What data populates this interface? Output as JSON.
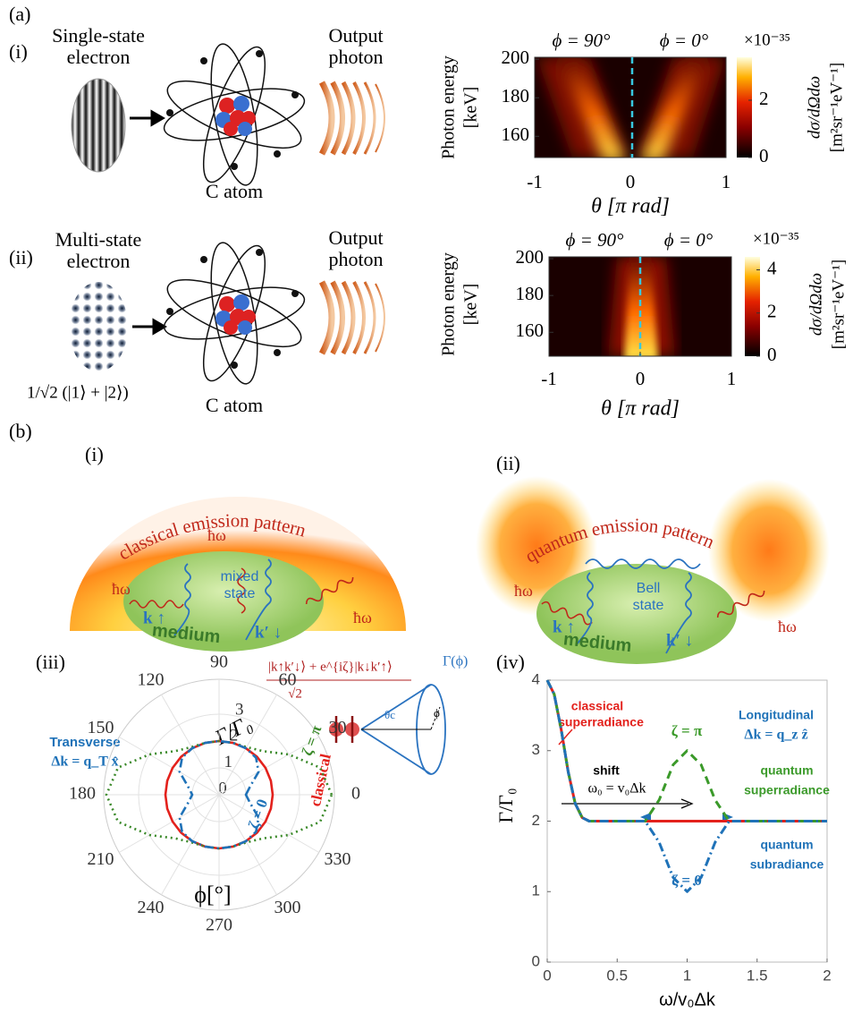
{
  "panel_a": {
    "label": "(a)",
    "rows": [
      {
        "label": "(i)",
        "electron": [
          "Single-state",
          "electron"
        ],
        "atom": "C atom",
        "photon": [
          "Output",
          "photon"
        ],
        "heatmap": {
          "top_labels": [
            "ϕ = 90°",
            "ϕ = 0°"
          ],
          "y_label": [
            "Photon energy",
            "[keV]"
          ],
          "x_label": "θ [π rad]",
          "xlim": [
            -1,
            1
          ],
          "xticks": [
            -1,
            0,
            1
          ],
          "ylim": [
            149,
            201
          ],
          "yticks": [
            160,
            180,
            200
          ],
          "colorbar_scale": "×10⁻³⁵",
          "clim": [
            0,
            3.5
          ],
          "cticks": [
            0,
            2
          ],
          "colorbar_label": [
            "dσ/dΩdω",
            "[m²sr⁻¹eV⁻¹]"
          ]
        }
      },
      {
        "label": "(ii)",
        "electron": [
          "Multi-state",
          "electron"
        ],
        "state": "1/√2 (|1⟩ + |2⟩)",
        "atom": "C atom",
        "photon": [
          "Output",
          "photon"
        ],
        "heatmap": {
          "top_labels": [
            "ϕ = 90°",
            "ϕ = 0°"
          ],
          "y_label": [
            "Photon energy",
            "[keV]"
          ],
          "x_label": "θ [π rad]",
          "xlim": [
            -1,
            1
          ],
          "xticks": [
            -1,
            0,
            1
          ],
          "ylim": [
            147,
            201
          ],
          "yticks": [
            160,
            180,
            200
          ],
          "colorbar_scale": "×10⁻³⁵",
          "clim": [
            0,
            4.6
          ],
          "cticks": [
            0,
            2,
            4
          ],
          "colorbar_label": [
            "dσ/dΩdω",
            "[m²sr⁻¹eV⁻¹]"
          ]
        }
      }
    ]
  },
  "panel_b": {
    "label": "(b)",
    "diagrams": [
      {
        "label": "(i)",
        "pattern": "classical emission pattern",
        "photons": [
          "ħω",
          "ħω",
          "ħω"
        ],
        "state": [
          "mixed",
          "state"
        ],
        "k_up": "k ↑",
        "k_down": "k′ ↓",
        "medium": "medium"
      },
      {
        "label": "(ii)",
        "pattern": "quantum emission pattern",
        "photons": [
          "ħω",
          "ħω"
        ],
        "state": [
          "Bell",
          "state"
        ],
        "k_up": "k ↑",
        "k_down": "k′ ↓",
        "medium": "medium"
      }
    ]
  },
  "polar": {
    "label": "(iii)",
    "angles": [
      0,
      15,
      30,
      45,
      60,
      75,
      90,
      105,
      120,
      135,
      150,
      165,
      180,
      195,
      210,
      225,
      240,
      255,
      270,
      285,
      300,
      315,
      330,
      345
    ],
    "angle_ticks": [
      0,
      30,
      60,
      90,
      120,
      150,
      180,
      210,
      240,
      270,
      300,
      330
    ],
    "rlim": [
      0,
      4.3
    ],
    "rticks": [
      0,
      1,
      2,
      3
    ],
    "r_label": "Γ/Γ₀",
    "angle_label": "ϕ[°]",
    "transverse": "Transverse",
    "dk": "Δk = q_T x̂",
    "series": [
      {
        "name": "classical",
        "color": "#e3211c",
        "style": "solid",
        "values": [
          2,
          2,
          2,
          2,
          2,
          2,
          2,
          2,
          2,
          2,
          2,
          2,
          2,
          2,
          2,
          2,
          2,
          2,
          2,
          2,
          2,
          2,
          2,
          2
        ]
      },
      {
        "name": "ζ = π",
        "color": "#3b8a2a",
        "style": "dotted",
        "values": [
          4.2,
          3.9,
          3,
          2.3,
          2.05,
          2,
          2,
          2,
          2.05,
          2.3,
          3,
          3.9,
          4.2,
          3.9,
          3,
          2.3,
          2.05,
          2,
          2,
          2,
          2.05,
          2.3,
          3,
          3.9
        ]
      },
      {
        "name": "ζ = 0",
        "color": "#1f72b8",
        "style": "dashdot",
        "values": [
          1,
          1.2,
          1.7,
          1.95,
          2,
          2,
          2,
          2,
          2,
          1.95,
          1.7,
          1.2,
          1,
          1.2,
          1.7,
          1.95,
          2,
          2,
          2,
          2,
          2,
          1.95,
          1.7,
          1.2
        ]
      }
    ],
    "inset": {
      "formula_top": "|k↑k′↓⟩ + e^{iζ}|k↓k′↑⟩",
      "formula_bottom": "√2",
      "gamma": "Γ(ϕ)",
      "theta": "θc",
      "phi": "ϕ"
    }
  },
  "line": {
    "label": "(iv)",
    "x": [
      0,
      0.05,
      0.1,
      0.15,
      0.2,
      0.25,
      0.3,
      0.7,
      0.8,
      0.9,
      1,
      1.1,
      1.2,
      1.3,
      2
    ],
    "xlim": [
      0,
      2
    ],
    "xticks": [
      0,
      0.5,
      1,
      1.5,
      2
    ],
    "ylim": [
      0,
      4
    ],
    "yticks": [
      0,
      1,
      2,
      3,
      4
    ],
    "x_label": "ω/v₀Δk",
    "y_label": "Γ/Γ₀",
    "series": [
      {
        "name": "classical",
        "color": "#e3211c",
        "style": "solid",
        "values": [
          4,
          3.8,
          3.3,
          2.7,
          2.25,
          2.05,
          2,
          2,
          2,
          2,
          2,
          2,
          2,
          2,
          2
        ]
      },
      {
        "name": "ζ = π",
        "color": "#3b9a2a",
        "style": "dashed",
        "values": [
          4,
          3.8,
          3.3,
          2.7,
          2.25,
          2.05,
          2,
          2,
          2.3,
          2.8,
          3,
          2.8,
          2.3,
          2,
          2
        ]
      },
      {
        "name": "ζ = 0",
        "color": "#1f72b8",
        "style": "dashdot",
        "values": [
          4,
          3.8,
          3.3,
          2.7,
          2.25,
          2.05,
          2,
          2,
          1.7,
          1.2,
          1,
          1.2,
          1.7,
          2,
          2
        ]
      }
    ],
    "annotations": {
      "classical": [
        "classical",
        "superradiance"
      ],
      "longitudinal": [
        "Longitudinal",
        "Δk = q_z ẑ"
      ],
      "shift": [
        "shift",
        "ω₀ = v₀Δk"
      ],
      "quantum_super": [
        "quantum",
        "superradiance"
      ],
      "quantum_sub": [
        "quantum",
        "subradiance"
      ]
    }
  }
}
